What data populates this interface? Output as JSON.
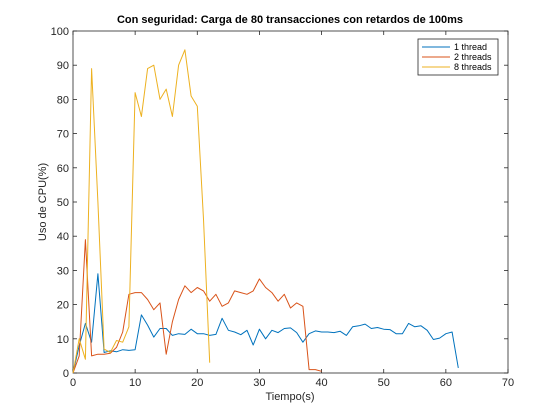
{
  "chart_data": {
    "type": "line",
    "title": "Con seguridad: Carga de 80 transacciones con retardos de 100ms",
    "xlabel": "Tiempo(s)",
    "ylabel": "Uso de CPU(%)",
    "xlim": [
      0,
      70
    ],
    "ylim": [
      0,
      100
    ],
    "xticks": [
      0,
      10,
      20,
      30,
      40,
      50,
      60,
      70
    ],
    "yticks": [
      0,
      10,
      20,
      30,
      40,
      50,
      60,
      70,
      80,
      90,
      100
    ],
    "grid": false,
    "legend_position": "top-right",
    "series": [
      {
        "name": "1 thread",
        "color": "#0072BD",
        "x": [
          0,
          1,
          2,
          3,
          4,
          5,
          6,
          7,
          8,
          9,
          10,
          11,
          12,
          13,
          14,
          15,
          16,
          17,
          18,
          19,
          20,
          21,
          22,
          23,
          24,
          25,
          26,
          27,
          28,
          29,
          30,
          31,
          32,
          33,
          34,
          35,
          36,
          37,
          38,
          39,
          40,
          41,
          42,
          43,
          44,
          45,
          46,
          47,
          48,
          49,
          50,
          51,
          52,
          53,
          54,
          55,
          56,
          57,
          58,
          59,
          60,
          61,
          62
        ],
        "y": [
          0,
          8,
          14.5,
          9,
          29,
          6,
          6.5,
          6.2,
          6.8,
          6.6,
          6.8,
          17,
          14,
          10.5,
          13,
          13,
          11,
          11.5,
          11.3,
          12.8,
          11.5,
          11.5,
          11,
          11.3,
          16,
          12.5,
          12,
          11.2,
          12.5,
          8.2,
          12.8,
          10,
          12.5,
          11.8,
          13,
          13.2,
          11.8,
          9,
          11.5,
          12.3,
          12,
          12,
          11.8,
          12.2,
          11,
          13.5,
          13.8,
          14.3,
          13,
          13.3,
          12.8,
          12.7,
          11.5,
          11.5,
          14.5,
          13.5,
          13.8,
          12.5,
          9.8,
          10.2,
          11.5,
          12,
          1.5
        ]
      },
      {
        "name": "2 threads",
        "color": "#D95319",
        "x": [
          0,
          1,
          2,
          3,
          4,
          5,
          6,
          7,
          8,
          9,
          10,
          11,
          12,
          13,
          14,
          15,
          16,
          17,
          18,
          19,
          20,
          21,
          22,
          23,
          24,
          25,
          26,
          27,
          28,
          29,
          30,
          31,
          32,
          33,
          34,
          35,
          36,
          37,
          38,
          39,
          40
        ],
        "y": [
          0,
          5,
          39,
          5,
          5.5,
          5.5,
          5.8,
          7.5,
          12,
          23,
          23.5,
          23.5,
          21.5,
          18.5,
          20.5,
          5.5,
          15,
          21.5,
          25.5,
          23.5,
          25,
          24,
          21,
          23,
          19.5,
          20.5,
          24,
          23.5,
          23,
          24,
          27.5,
          25,
          23.5,
          21,
          23,
          19,
          20.5,
          19.5,
          1,
          1,
          0.5
        ]
      },
      {
        "name": "8 threads",
        "color": "#EDB120",
        "x": [
          0,
          1,
          2,
          3,
          4,
          5,
          6,
          7,
          8,
          9,
          10,
          11,
          12,
          13,
          14,
          15,
          16,
          17,
          18,
          19,
          20,
          21,
          22
        ],
        "y": [
          0,
          10,
          4,
          89,
          50,
          7,
          6,
          9.5,
          9,
          13.5,
          82,
          75,
          89,
          90,
          80,
          83,
          75,
          90,
          94.5,
          81,
          78,
          45,
          3
        ]
      }
    ]
  }
}
